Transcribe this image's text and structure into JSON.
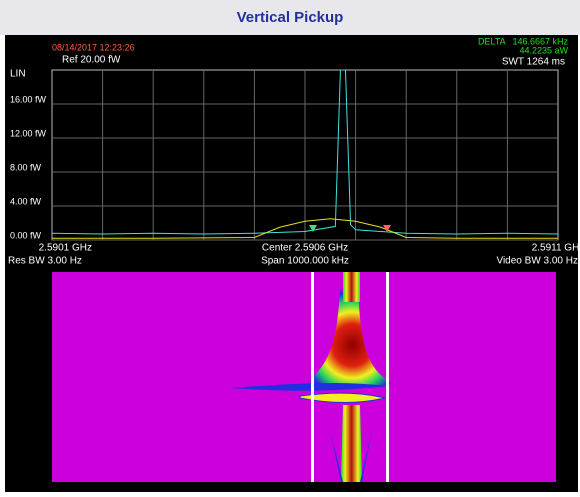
{
  "header": {
    "title": "Vertical Pickup"
  },
  "status": {
    "timestamp": "08/14/2017 12:23:26",
    "ref": "Ref 20.00 fW",
    "delta": "DELTA",
    "delta_freq": "146.6667 kHz",
    "delta_power": "44.2235 aW",
    "swt": "SWT 1264 ms",
    "scale": "LIN"
  },
  "footer": {
    "center": "Center 2.5906 GHz",
    "span": "Span 1000.000 kHz",
    "res_bw": "Res BW 3.00  Hz",
    "video_bw": "Video BW 3.00  Hz"
  },
  "chart_data": {
    "type": "line",
    "xlim": [
      2.5901,
      2.5911
    ],
    "xticks": [
      {
        "value": 2.5901,
        "label": "2.5901 GHz"
      },
      {
        "value": 2.5911,
        "label": "2.5911 GHz"
      }
    ],
    "ylim": [
      0,
      20
    ],
    "yticks": [
      {
        "value": 0,
        "label": "0.00 fW"
      },
      {
        "value": 4,
        "label": "4.00 fW"
      },
      {
        "value": 8,
        "label": "8.00 fW"
      },
      {
        "value": 12,
        "label": "12.00 fW"
      },
      {
        "value": 16,
        "label": "16.00 fW"
      }
    ],
    "grid": true,
    "series": [
      {
        "color": "#40e0e0",
        "x": [
          2.5901,
          2.5902,
          2.5903,
          2.5904,
          2.5905,
          2.5906,
          2.59066,
          2.59067,
          2.59068,
          2.59069,
          2.5907,
          2.5908,
          2.5909,
          2.591,
          2.5911
        ],
        "values": [
          0.8,
          0.7,
          0.8,
          0.7,
          0.8,
          1.0,
          1.6,
          20,
          20,
          1.8,
          1.2,
          0.8,
          0.7,
          0.8,
          0.7
        ]
      },
      {
        "color": "#e8e020",
        "x": [
          2.5901,
          2.5903,
          2.5905,
          2.59055,
          2.5906,
          2.59065,
          2.5907,
          2.59075,
          2.5908,
          2.5909,
          2.5911
        ],
        "values": [
          0.2,
          0.2,
          0.3,
          1.5,
          2.2,
          2.5,
          2.2,
          1.5,
          0.3,
          0.2,
          0.2
        ]
      }
    ]
  }
}
